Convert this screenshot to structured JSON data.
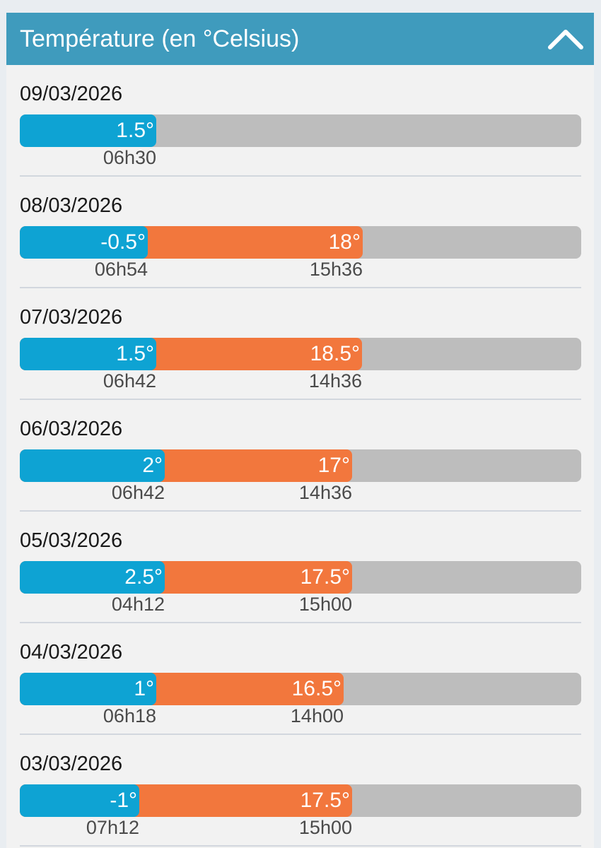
{
  "header": {
    "title": "Température (en °Celsius)",
    "collapse_icon": "chevron-up-icon"
  },
  "scale": {
    "max_degrees": 27.9
  },
  "colors": {
    "header": "#3f9bbd",
    "min_bar": "#0ea3d3",
    "max_bar": "#f2773d",
    "track": "#bdbdbd"
  },
  "days": [
    {
      "date": "09/03/2026",
      "min_level": 0.243,
      "min_label": "1.5°",
      "min_time": "06h30",
      "max_level": null,
      "max_label": "",
      "max_time": ""
    },
    {
      "date": "08/03/2026",
      "min_level": 0.228,
      "min_label": "-0.5°",
      "min_time": "06h54",
      "max_level": 0.611,
      "max_label": "18°",
      "max_time": "15h36"
    },
    {
      "date": "07/03/2026",
      "min_level": 0.243,
      "min_label": "1.5°",
      "min_time": "06h42",
      "max_level": 0.609,
      "max_label": "18.5°",
      "max_time": "14h36"
    },
    {
      "date": "06/03/2026",
      "min_level": 0.258,
      "min_label": "2°",
      "min_time": "06h42",
      "max_level": 0.592,
      "max_label": "17°",
      "max_time": "14h36"
    },
    {
      "date": "05/03/2026",
      "min_level": 0.258,
      "min_label": "2.5°",
      "min_time": "04h12",
      "max_level": 0.592,
      "max_label": "17.5°",
      "max_time": "15h00"
    },
    {
      "date": "04/03/2026",
      "min_level": 0.243,
      "min_label": "1°",
      "min_time": "06h18",
      "max_level": 0.577,
      "max_label": "16.5°",
      "max_time": "14h00"
    },
    {
      "date": "03/03/2026",
      "min_level": 0.213,
      "min_label": "-1°",
      "min_time": "07h12",
      "max_level": 0.592,
      "max_label": "17.5°",
      "max_time": "15h00"
    }
  ]
}
